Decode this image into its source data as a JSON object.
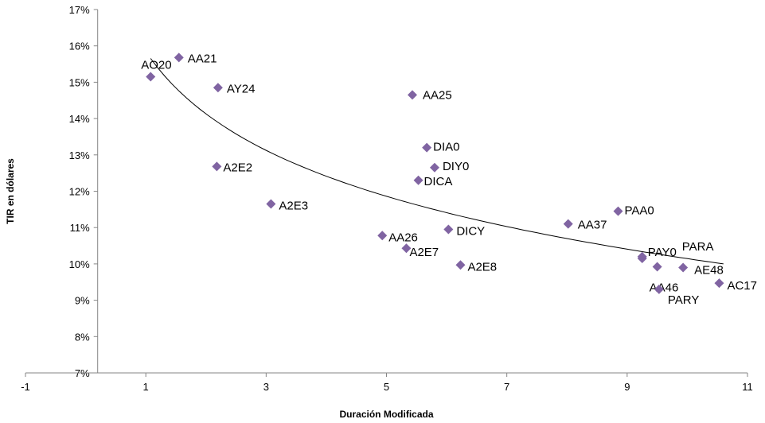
{
  "chart_data": {
    "type": "scatter",
    "title": "",
    "xlabel": "Duración Modificada",
    "ylabel": "TIR en dólares",
    "xlim": [
      -1,
      11
    ],
    "ylim": [
      7,
      17
    ],
    "x_ticks": [
      -1,
      1,
      3,
      5,
      7,
      9,
      11
    ],
    "y_ticks": [
      "7%",
      "8%",
      "9%",
      "10%",
      "11%",
      "12%",
      "13%",
      "14%",
      "15%",
      "16%",
      "17%"
    ],
    "grid": false,
    "legend": "none",
    "marker": "diamond",
    "marker_color": "#8064A2",
    "trendline": {
      "type": "logarithmic",
      "x_range": [
        1.08,
        10.6
      ],
      "color": "#000000"
    },
    "points": [
      {
        "label": "AO20",
        "x": 1.08,
        "y": 15.15
      },
      {
        "label": "AA21",
        "x": 1.55,
        "y": 15.68
      },
      {
        "label": "AY24",
        "x": 2.2,
        "y": 14.85
      },
      {
        "label": "A2E2",
        "x": 2.18,
        "y": 12.68
      },
      {
        "label": "A2E3",
        "x": 3.08,
        "y": 11.65
      },
      {
        "label": "AA25",
        "x": 5.43,
        "y": 14.65
      },
      {
        "label": "DIA0",
        "x": 5.67,
        "y": 13.2
      },
      {
        "label": "DIY0",
        "x": 5.8,
        "y": 12.65
      },
      {
        "label": "DICA",
        "x": 5.53,
        "y": 12.3
      },
      {
        "label": "AA26",
        "x": 4.93,
        "y": 10.78
      },
      {
        "label": "A2E7",
        "x": 5.33,
        "y": 10.43
      },
      {
        "label": "DICY",
        "x": 6.03,
        "y": 10.95
      },
      {
        "label": "A2E8",
        "x": 6.23,
        "y": 9.97
      },
      {
        "label": "AA37",
        "x": 8.02,
        "y": 11.1
      },
      {
        "label": "PAA0",
        "x": 8.85,
        "y": 11.45
      },
      {
        "label": "PAY0",
        "x": 9.25,
        "y": 10.2
      },
      {
        "label": "PARA",
        "x": 9.25,
        "y": 10.15
      },
      {
        "label": "AE48",
        "x": 9.93,
        "y": 9.9
      },
      {
        "label": "AA46",
        "x": 9.5,
        "y": 9.92
      },
      {
        "label": "PARY",
        "x": 9.53,
        "y": 9.3
      },
      {
        "label": "AC17",
        "x": 10.53,
        "y": 9.47
      }
    ]
  }
}
